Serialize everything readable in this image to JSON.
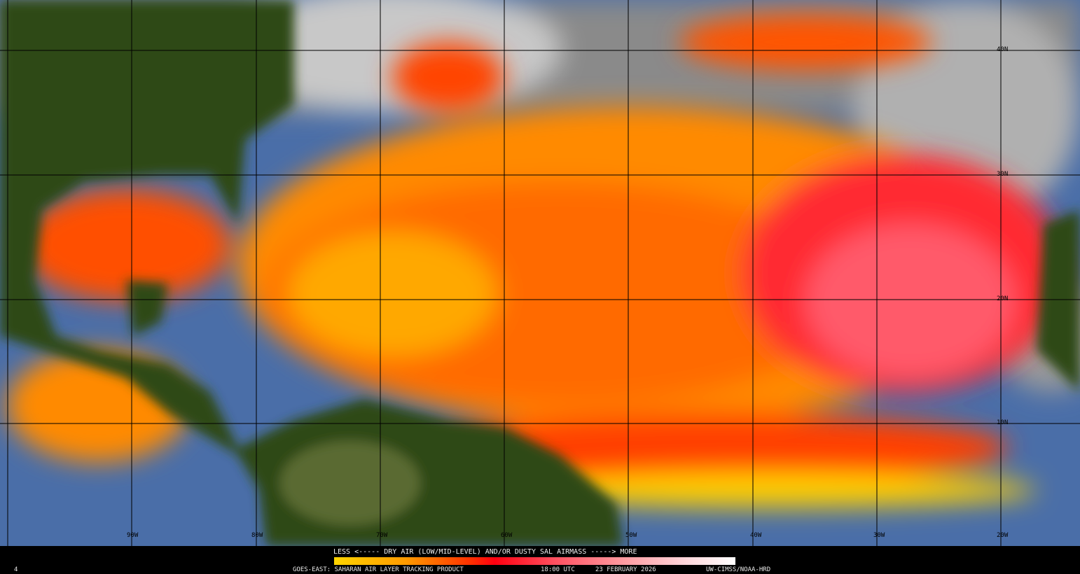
{
  "map": {
    "latitude_labels": [
      "40N",
      "30N",
      "20N",
      "10N"
    ],
    "longitude_labels": [
      "90W",
      "80W",
      "70W",
      "60W",
      "50W",
      "40W",
      "30W",
      "20W"
    ],
    "colors": {
      "land": "#2e4a12",
      "ocean_clear": "#4a6ea8",
      "cloud": "#b8b8b8",
      "dry_air_low": "#ffd400",
      "dry_air_mid": "#ff2a00",
      "dry_air_high": "#ff8a98"
    }
  },
  "legend": {
    "title": "LESS <----- DRY AIR (LOW/MID-LEVEL) AND/OR DUSTY SAL AIRMASS -----> MORE",
    "scale_colors": [
      "#ffd400",
      "#ff9a00",
      "#ff0010",
      "#ff9aa0",
      "#ffffff"
    ]
  },
  "footer": {
    "frame_number": "4",
    "product": "GOES-EAST: SAHARAN AIR LAYER TRACKING PRODUCT",
    "time": "18:00 UTC",
    "date": "23 FEBRUARY 2026",
    "credit": "UW-CIMSS/NOAA-HRD"
  }
}
